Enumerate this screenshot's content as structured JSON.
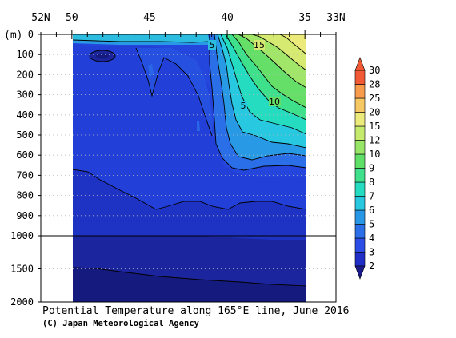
{
  "chart_data": {
    "type": "heatmap",
    "title": "Potential Temperature along 165°E line, June 2016",
    "credit": "(C) Japan Meteorological Agency",
    "y_unit_label": "(m)",
    "x_axis": {
      "direction": "north-to-south",
      "lat_range": [
        52,
        33
      ],
      "data_lat_range": [
        50,
        35
      ],
      "tick_labels": [
        "52N",
        "50",
        "45",
        "40",
        "35",
        "33N"
      ],
      "tick_values": [
        52,
        50,
        45,
        40,
        35,
        33
      ]
    },
    "y_axis": {
      "upper_range": [
        0,
        1000
      ],
      "lower_range": [
        1000,
        2000
      ],
      "upper_ticks": [
        "0",
        "100",
        "200",
        "300",
        "400",
        "500",
        "600",
        "700",
        "800",
        "900",
        "1000"
      ],
      "lower_ticks": [
        "1500",
        "2000"
      ],
      "gridlines": true
    },
    "colorbar": {
      "levels": [
        2,
        3,
        4,
        5,
        6,
        7,
        8,
        9,
        10,
        12,
        15,
        20,
        25,
        28,
        30
      ],
      "labels": [
        "2",
        "3",
        "4",
        "5",
        "6",
        "7",
        "8",
        "9",
        "10",
        "12",
        "15",
        "20",
        "25",
        "28",
        "30"
      ],
      "colors": [
        "#1a1a8c",
        "#1f2fc8",
        "#2a4de8",
        "#2b6fe8",
        "#2898e6",
        "#27c7e0",
        "#25dcc0",
        "#3fe08c",
        "#5fdf68",
        "#97e668",
        "#c6ea6e",
        "#ecea7a",
        "#f6c864",
        "#f79b4d",
        "#f25a36"
      ]
    },
    "contour_labels": [
      "5",
      "15",
      "5",
      "10"
    ]
  }
}
